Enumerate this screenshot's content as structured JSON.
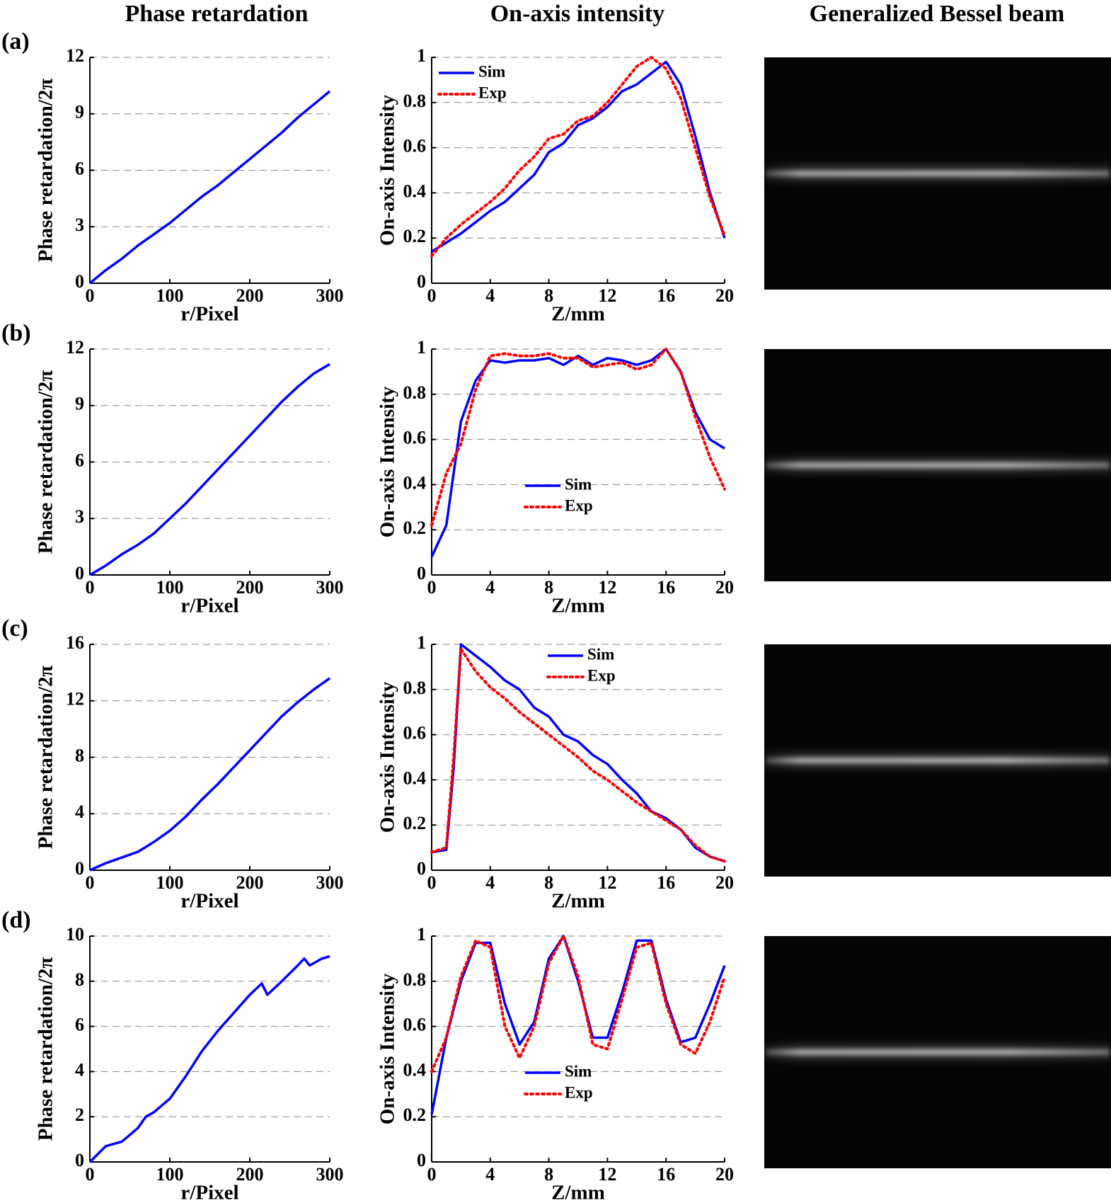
{
  "column_titles": [
    "Phase retardation",
    "On-axis intensity",
    "Generalized Bessel beam"
  ],
  "panel_labels": [
    "(a)",
    "(b)",
    "(c)",
    "(d)"
  ],
  "chart_data": [
    {
      "type": "line",
      "x_label": "r/Pixel",
      "y_label": "Phase retardation/2π",
      "xlim": [
        0,
        300
      ],
      "xticks": [
        0,
        100,
        200,
        300
      ],
      "ylim": [
        0,
        12
      ],
      "yticks": [
        0,
        3,
        6,
        9,
        12
      ],
      "grid": true,
      "x": [
        0,
        20,
        40,
        60,
        80,
        100,
        120,
        140,
        160,
        180,
        200,
        220,
        240,
        260,
        280,
        300
      ],
      "series": [
        {
          "color": "#0000ff",
          "line_style": "solid",
          "values": [
            0,
            0.7,
            1.3,
            2.0,
            2.6,
            3.2,
            3.9,
            4.6,
            5.2,
            5.9,
            6.6,
            7.3,
            8.0,
            8.8,
            9.5,
            10.2
          ]
        }
      ]
    },
    {
      "type": "line",
      "x_label": "Z/mm",
      "y_label": "On-axis Intensity",
      "xlim": [
        0,
        20
      ],
      "xticks": [
        0,
        4,
        8,
        12,
        16,
        20
      ],
      "ylim": [
        0,
        1
      ],
      "yticks": [
        0,
        0.2,
        0.4,
        0.6,
        0.8,
        1
      ],
      "grid": true,
      "legend": "upper left",
      "x": [
        0,
        1,
        2,
        3,
        4,
        5,
        6,
        7,
        8,
        9,
        10,
        11,
        12,
        13,
        14,
        15,
        16,
        17,
        18,
        19,
        20
      ],
      "series": [
        {
          "name": "Sim",
          "color": "#0000ff",
          "line_style": "solid",
          "values": [
            0.14,
            0.18,
            0.22,
            0.27,
            0.32,
            0.36,
            0.42,
            0.48,
            0.58,
            0.62,
            0.7,
            0.73,
            0.78,
            0.85,
            0.88,
            0.93,
            0.98,
            0.88,
            0.65,
            0.4,
            0.2
          ]
        },
        {
          "name": "Exp",
          "color": "#ff0000",
          "line_style": "dotted",
          "values": [
            0.12,
            0.2,
            0.26,
            0.31,
            0.36,
            0.42,
            0.5,
            0.56,
            0.64,
            0.66,
            0.72,
            0.74,
            0.8,
            0.88,
            0.96,
            1.0,
            0.95,
            0.82,
            0.6,
            0.38,
            0.21
          ]
        }
      ]
    },
    {
      "type": "line",
      "x_label": "r/Pixel",
      "y_label": "Phase retardation/2π",
      "xlim": [
        0,
        300
      ],
      "xticks": [
        0,
        100,
        200,
        300
      ],
      "ylim": [
        0,
        12
      ],
      "yticks": [
        0,
        3,
        6,
        9,
        12
      ],
      "grid": true,
      "x": [
        0,
        20,
        40,
        60,
        80,
        100,
        120,
        140,
        160,
        180,
        200,
        220,
        240,
        260,
        280,
        300
      ],
      "series": [
        {
          "color": "#0000ff",
          "line_style": "solid",
          "values": [
            0,
            0.5,
            1.1,
            1.6,
            2.2,
            3.0,
            3.8,
            4.7,
            5.6,
            6.5,
            7.4,
            8.3,
            9.2,
            10.0,
            10.7,
            11.2
          ]
        }
      ]
    },
    {
      "type": "line",
      "x_label": "Z/mm",
      "y_label": "On-axis Intensity",
      "xlim": [
        0,
        20
      ],
      "xticks": [
        0,
        4,
        8,
        12,
        16,
        20
      ],
      "ylim": [
        0,
        1
      ],
      "yticks": [
        0,
        0.2,
        0.4,
        0.6,
        0.8,
        1
      ],
      "grid": true,
      "legend": "lower center",
      "x": [
        0,
        1,
        2,
        3,
        4,
        5,
        6,
        7,
        8,
        9,
        10,
        11,
        12,
        13,
        14,
        15,
        16,
        17,
        18,
        19,
        20
      ],
      "series": [
        {
          "name": "Sim",
          "color": "#0000ff",
          "line_style": "solid",
          "values": [
            0.08,
            0.22,
            0.68,
            0.86,
            0.95,
            0.94,
            0.95,
            0.95,
            0.96,
            0.93,
            0.97,
            0.93,
            0.96,
            0.95,
            0.93,
            0.95,
            1.0,
            0.9,
            0.72,
            0.6,
            0.56
          ]
        },
        {
          "name": "Exp",
          "color": "#ff0000",
          "line_style": "dotted",
          "values": [
            0.22,
            0.45,
            0.58,
            0.82,
            0.97,
            0.98,
            0.97,
            0.97,
            0.98,
            0.96,
            0.96,
            0.92,
            0.93,
            0.94,
            0.91,
            0.93,
            1.0,
            0.9,
            0.7,
            0.52,
            0.38
          ]
        }
      ]
    },
    {
      "type": "line",
      "x_label": "r/Pixel",
      "y_label": "Phase retardation/2π",
      "xlim": [
        0,
        300
      ],
      "xticks": [
        0,
        100,
        200,
        300
      ],
      "ylim": [
        0,
        16
      ],
      "yticks": [
        0,
        4,
        8,
        12,
        16
      ],
      "grid": true,
      "x": [
        0,
        20,
        40,
        60,
        80,
        100,
        120,
        140,
        160,
        180,
        200,
        220,
        240,
        260,
        280,
        300
      ],
      "series": [
        {
          "color": "#0000ff",
          "line_style": "solid",
          "values": [
            0,
            0.5,
            0.9,
            1.3,
            2.0,
            2.8,
            3.8,
            5.0,
            6.1,
            7.3,
            8.5,
            9.7,
            10.9,
            11.9,
            12.8,
            13.6
          ]
        }
      ]
    },
    {
      "type": "line",
      "x_label": "Z/mm",
      "y_label": "On-axis Intensity",
      "xlim": [
        0,
        20
      ],
      "xticks": [
        0,
        4,
        8,
        12,
        16,
        20
      ],
      "ylim": [
        0,
        1
      ],
      "yticks": [
        0,
        0.2,
        0.4,
        0.6,
        0.8,
        1
      ],
      "grid": true,
      "legend": "upper right",
      "x": [
        0,
        1,
        1.5,
        2,
        3,
        4,
        5,
        6,
        7,
        8,
        9,
        10,
        11,
        12,
        13,
        14,
        15,
        16,
        17,
        18,
        19,
        20
      ],
      "series": [
        {
          "name": "Sim",
          "color": "#0000ff",
          "line_style": "solid",
          "values": [
            0.08,
            0.09,
            0.45,
            1.0,
            0.95,
            0.9,
            0.84,
            0.8,
            0.72,
            0.68,
            0.6,
            0.57,
            0.51,
            0.47,
            0.4,
            0.34,
            0.26,
            0.23,
            0.18,
            0.1,
            0.06,
            0.04
          ]
        },
        {
          "name": "Exp",
          "color": "#ff0000",
          "line_style": "dotted",
          "values": [
            0.08,
            0.1,
            0.5,
            0.98,
            0.88,
            0.81,
            0.76,
            0.7,
            0.65,
            0.6,
            0.55,
            0.5,
            0.44,
            0.4,
            0.35,
            0.3,
            0.26,
            0.22,
            0.18,
            0.11,
            0.06,
            0.04
          ]
        }
      ]
    },
    {
      "type": "line",
      "x_label": "r/Pixel",
      "y_label": "Phase retardation/2π",
      "xlim": [
        0,
        300
      ],
      "xticks": [
        0,
        100,
        200,
        300
      ],
      "ylim": [
        0,
        10
      ],
      "yticks": [
        0,
        2,
        4,
        6,
        8,
        10
      ],
      "grid": true,
      "x": [
        0,
        20,
        40,
        60,
        70,
        80,
        100,
        120,
        140,
        160,
        180,
        200,
        215,
        222,
        240,
        260,
        268,
        275,
        290,
        300
      ],
      "series": [
        {
          "color": "#0000ff",
          "line_style": "solid",
          "values": [
            0,
            0.7,
            0.9,
            1.5,
            2.0,
            2.2,
            2.8,
            3.8,
            4.9,
            5.8,
            6.6,
            7.4,
            7.9,
            7.4,
            8.0,
            8.7,
            9.0,
            8.7,
            9.0,
            9.1
          ]
        }
      ]
    },
    {
      "type": "line",
      "x_label": "Z/mm",
      "y_label": "On-axis Intensity",
      "xlim": [
        0,
        20
      ],
      "xticks": [
        0,
        4,
        8,
        12,
        16,
        20
      ],
      "ylim": [
        0,
        1
      ],
      "yticks": [
        0,
        0.2,
        0.4,
        0.6,
        0.8,
        1
      ],
      "grid": true,
      "legend": "lower center",
      "x": [
        0,
        1,
        2,
        3,
        4,
        5,
        6,
        7,
        8,
        9,
        10,
        11,
        12,
        13,
        14,
        15,
        16,
        17,
        18,
        19,
        20
      ],
      "series": [
        {
          "name": "Sim",
          "color": "#0000ff",
          "line_style": "solid",
          "values": [
            0.21,
            0.55,
            0.8,
            0.97,
            0.97,
            0.7,
            0.52,
            0.62,
            0.9,
            1.0,
            0.8,
            0.55,
            0.55,
            0.75,
            0.98,
            0.98,
            0.72,
            0.53,
            0.55,
            0.7,
            0.87
          ]
        },
        {
          "name": "Exp",
          "color": "#ff0000",
          "line_style": "dotted",
          "values": [
            0.4,
            0.55,
            0.82,
            0.98,
            0.95,
            0.6,
            0.46,
            0.6,
            0.88,
            1.0,
            0.82,
            0.52,
            0.5,
            0.72,
            0.95,
            0.97,
            0.7,
            0.52,
            0.48,
            0.62,
            0.82
          ]
        }
      ]
    }
  ]
}
